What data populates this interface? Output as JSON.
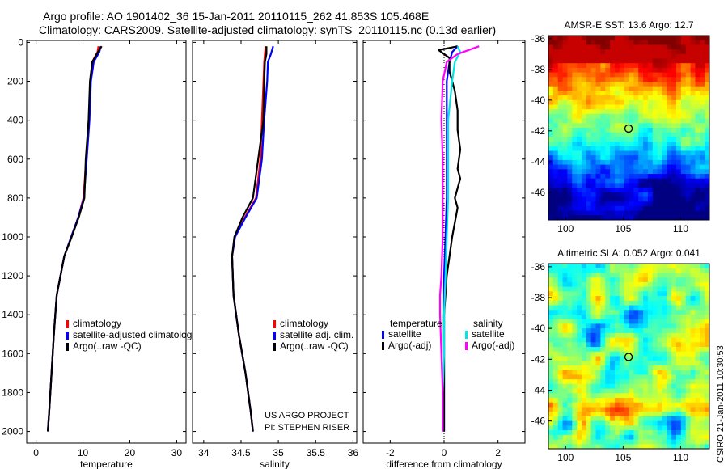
{
  "header": {
    "line1": "Argo profile: AO 1901402_36 15-Jan-2011 20110115_262 41.853S 105.468E",
    "line2": "Climatology: CARS2009. Satellite-adjusted climatology: synTS_20110115.nc (0.13d earlier)"
  },
  "chart_data": [
    {
      "type": "line",
      "id": "temperature",
      "xlabel": "temperature",
      "ylabel": "",
      "xlim": [
        -2,
        32
      ],
      "ylim": [
        2060,
        -10
      ],
      "xticks": [
        0,
        10,
        20,
        30
      ],
      "yticks": [
        0,
        200,
        400,
        600,
        800,
        1000,
        1200,
        1400,
        1600,
        1800,
        2000
      ],
      "series": [
        {
          "name": "climatology",
          "color": "#ff0000",
          "x": [
            13.3,
            13.1,
            12.0,
            11.6,
            11.3,
            10.7,
            10.1,
            9.0,
            7.5,
            6.0,
            4.4,
            3.8,
            3.3,
            2.8,
            2.5
          ],
          "y": [
            20,
            50,
            100,
            200,
            400,
            600,
            800,
            900,
            1000,
            1100,
            1300,
            1500,
            1700,
            1900,
            2000
          ]
        },
        {
          "name": "satellite-adjusted climatology",
          "color": "#0000ff",
          "x": [
            13.8,
            13.5,
            12.3,
            11.7,
            11.4,
            10.8,
            10.2,
            9.0,
            7.5,
            6.0,
            4.4,
            3.8,
            3.3,
            2.8,
            2.5
          ],
          "y": [
            20,
            50,
            100,
            200,
            400,
            600,
            800,
            900,
            1000,
            1100,
            1300,
            1500,
            1700,
            1900,
            2000
          ]
        },
        {
          "name": "Argo(..raw -QC)",
          "color": "#000000",
          "x": [
            14.0,
            13.2,
            12.0,
            11.5,
            11.2,
            10.6,
            10.3,
            9.1,
            7.6,
            6.0,
            4.4,
            3.8,
            3.3,
            2.8,
            2.5
          ],
          "y": [
            20,
            50,
            100,
            200,
            400,
            600,
            800,
            900,
            1000,
            1100,
            1300,
            1500,
            1700,
            1900,
            2000
          ]
        }
      ],
      "legend": [
        "climatology",
        "satellite-adjusted climatology",
        "Argo(..raw -QC)"
      ]
    },
    {
      "type": "line",
      "id": "salinity",
      "xlabel": "salinity",
      "xlim": [
        33.85,
        36.05
      ],
      "ylim": [
        2060,
        -10
      ],
      "xticks": [
        34,
        34.5,
        35,
        35.5,
        36
      ],
      "series": [
        {
          "name": "climatology",
          "color": "#ff0000",
          "x": [
            34.83,
            34.82,
            34.81,
            34.8,
            34.78,
            34.76,
            34.7,
            34.55,
            34.42,
            34.38,
            34.4,
            34.47,
            34.56,
            34.63,
            34.66
          ],
          "y": [
            20,
            60,
            100,
            200,
            400,
            600,
            800,
            900,
            1000,
            1100,
            1300,
            1500,
            1700,
            1900,
            2000
          ]
        },
        {
          "name": "satellite adj. clim.",
          "color": "#0000ff",
          "x": [
            34.93,
            34.9,
            34.86,
            34.85,
            34.81,
            34.78,
            34.71,
            34.56,
            34.42,
            34.38,
            34.4,
            34.47,
            34.56,
            34.63,
            34.66
          ],
          "y": [
            20,
            60,
            100,
            200,
            400,
            600,
            800,
            900,
            1000,
            1100,
            1300,
            1500,
            1700,
            1900,
            2000
          ]
        },
        {
          "name": "Argo(..raw -QC)",
          "color": "#000000",
          "x": [
            34.84,
            34.84,
            34.82,
            34.81,
            34.8,
            34.73,
            34.66,
            34.52,
            34.41,
            34.38,
            34.4,
            34.47,
            34.56,
            34.63,
            34.66
          ],
          "y": [
            20,
            60,
            100,
            200,
            400,
            600,
            800,
            900,
            1000,
            1100,
            1300,
            1500,
            1700,
            1900,
            2000
          ]
        }
      ],
      "legend": [
        "climatology",
        "satellite adj. clim.",
        "Argo(..raw -QC)"
      ],
      "annotation": [
        "US ARGO PROJECT",
        "PI: STEPHEN RISER"
      ]
    },
    {
      "type": "line",
      "id": "difference",
      "xlabel": "difference from climatology",
      "xlim": [
        -3,
        3
      ],
      "ylim": [
        2060,
        -10
      ],
      "xticks": [
        -2,
        0,
        2
      ],
      "series": [
        {
          "name": "temperature satellite",
          "color": "#0000ff",
          "x": [
            0.5,
            0.3,
            0.2,
            0.1,
            0.1,
            0.1,
            0.1,
            0.05,
            0.0,
            0.0,
            0.0,
            0.0,
            0.0
          ],
          "y": [
            20,
            50,
            100,
            200,
            400,
            600,
            800,
            1000,
            1200,
            1400,
            1600,
            1800,
            2000
          ]
        },
        {
          "name": "temperature Argo(-adj)",
          "color": "#000000",
          "x": [
            0.5,
            -0.2,
            0.2,
            0.2,
            0.4,
            0.5,
            0.5,
            0.6,
            0.5,
            0.6,
            0.4,
            0.5,
            0.3,
            0.1,
            0.0,
            0.0,
            0.0
          ],
          "y": [
            20,
            40,
            80,
            150,
            250,
            350,
            450,
            550,
            650,
            700,
            800,
            850,
            1000,
            1200,
            1400,
            1700,
            2000
          ]
        },
        {
          "name": "salinity satellite",
          "color": "#00e5e5",
          "x": [
            0.5,
            0.6,
            0.4,
            0.3,
            0.15,
            0.15,
            0.15,
            0.1,
            0.05,
            0.0,
            0.0,
            -0.05,
            -0.05
          ],
          "y": [
            20,
            50,
            100,
            200,
            400,
            600,
            800,
            1000,
            1200,
            1400,
            1600,
            1800,
            2000
          ]
        },
        {
          "name": "salinity Argo(-adj)",
          "color": "#ff00ff",
          "x": [
            1.3,
            0.5,
            0.1,
            -0.05,
            -0.1,
            -0.05,
            -0.05,
            -0.05,
            -0.1,
            -0.15,
            -0.15,
            -0.1,
            -0.05,
            -0.05
          ],
          "y": [
            20,
            60,
            100,
            200,
            400,
            600,
            800,
            1000,
            1200,
            1300,
            1400,
            1600,
            1800,
            2000
          ]
        }
      ],
      "legend_temp_title": "temperature",
      "legend_sal_title": "salinity",
      "legend": [
        "satellite",
        "Argo(-adj)",
        "satellite",
        "Argo(-adj)"
      ]
    },
    {
      "type": "heatmap",
      "id": "amsre",
      "title": "AMSR-E SST: 13.6 Argo: 12.7",
      "xlim": [
        98.5,
        112.5
      ],
      "ylim": [
        -47.8,
        -35.8
      ],
      "xticks": [
        100,
        105,
        110
      ],
      "yticks": [
        -36,
        -38,
        -40,
        -42,
        -44,
        -46
      ],
      "marker": [
        105.47,
        -41.85
      ]
    },
    {
      "type": "heatmap",
      "id": "sla",
      "title": "Altimetric SLA: 0.052 Argo: 0.041",
      "xlim": [
        98.5,
        112.5
      ],
      "ylim": [
        -47.8,
        -35.8
      ],
      "xticks": [
        100,
        105,
        110
      ],
      "yticks": [
        -36,
        -38,
        -40,
        -42,
        -44,
        -46
      ],
      "marker": [
        105.47,
        -41.85
      ]
    }
  ],
  "footer": {
    "stamp": "CSIRO 21-Jan-2011 10:30:53"
  }
}
